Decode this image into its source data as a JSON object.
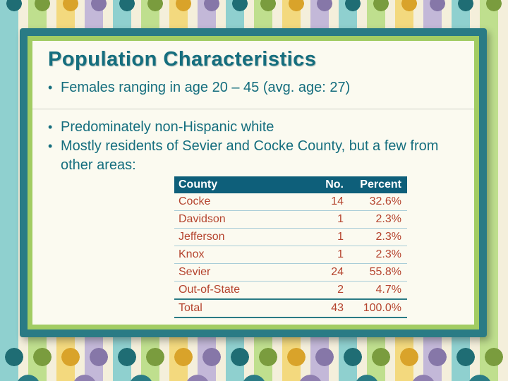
{
  "slide": {
    "title": "Population Characteristics",
    "bullet_char": "•",
    "bullets": [
      "Females ranging in age 20 – 45 (avg. age: 27)",
      "Predominately non-Hispanic white",
      "Mostly residents of Sevier and Cocke County, but a few from other areas:"
    ],
    "table": {
      "headers": [
        "County",
        "No.",
        "Percent"
      ],
      "rows": [
        [
          "Cocke",
          "14",
          "32.6%"
        ],
        [
          "Davidson",
          "1",
          "2.3%"
        ],
        [
          "Jefferson",
          "1",
          "2.3%"
        ],
        [
          "Knox",
          "1",
          "2.3%"
        ],
        [
          "Sevier",
          "24",
          "55.8%"
        ],
        [
          "Out-of-State",
          "2",
          "4.7%"
        ],
        [
          "Total",
          "43",
          "100.0%"
        ]
      ]
    },
    "colors": {
      "title_color": "#156e7e",
      "body_color": "#156e7e",
      "frame_outer": "#2a7b85",
      "frame_inner": "#a2cc63",
      "content_bg": "#fbfaf0",
      "table_header_bg": "#0e5f7a",
      "table_header_text": "#ffffff",
      "table_text": "#b5442e"
    }
  }
}
